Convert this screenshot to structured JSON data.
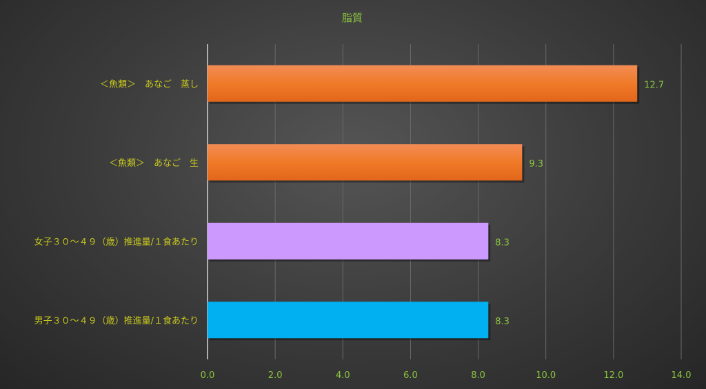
{
  "chart_data": {
    "type": "bar",
    "orientation": "horizontal",
    "title": "脂質",
    "categories": [
      "＜魚類＞　あなご　蒸し",
      "＜魚類＞　あなご　生",
      "女子３０～４９（歳）推進量/１食あたり",
      "男子３０～４９（歳）推進量/１食あたり"
    ],
    "values": [
      12.7,
      9.3,
      8.3,
      8.3
    ],
    "value_labels": [
      "12.7",
      "9.3",
      "8.3",
      "8.3"
    ],
    "bar_colors": [
      "#f07a28",
      "#f07a28",
      "#cc99ff",
      "#00b0f0"
    ],
    "xlim": [
      0,
      14
    ],
    "x_ticks": [
      "0.0",
      "2.0",
      "4.0",
      "6.0",
      "8.0",
      "10.0",
      "12.0",
      "14.0"
    ],
    "grid": "vertical",
    "xlabel": "",
    "ylabel": "",
    "colors": {
      "category_label": "#c8c81e",
      "value_label": "#8cc63f",
      "title": "#8cc63f",
      "grid": "#6a6a6a"
    }
  }
}
